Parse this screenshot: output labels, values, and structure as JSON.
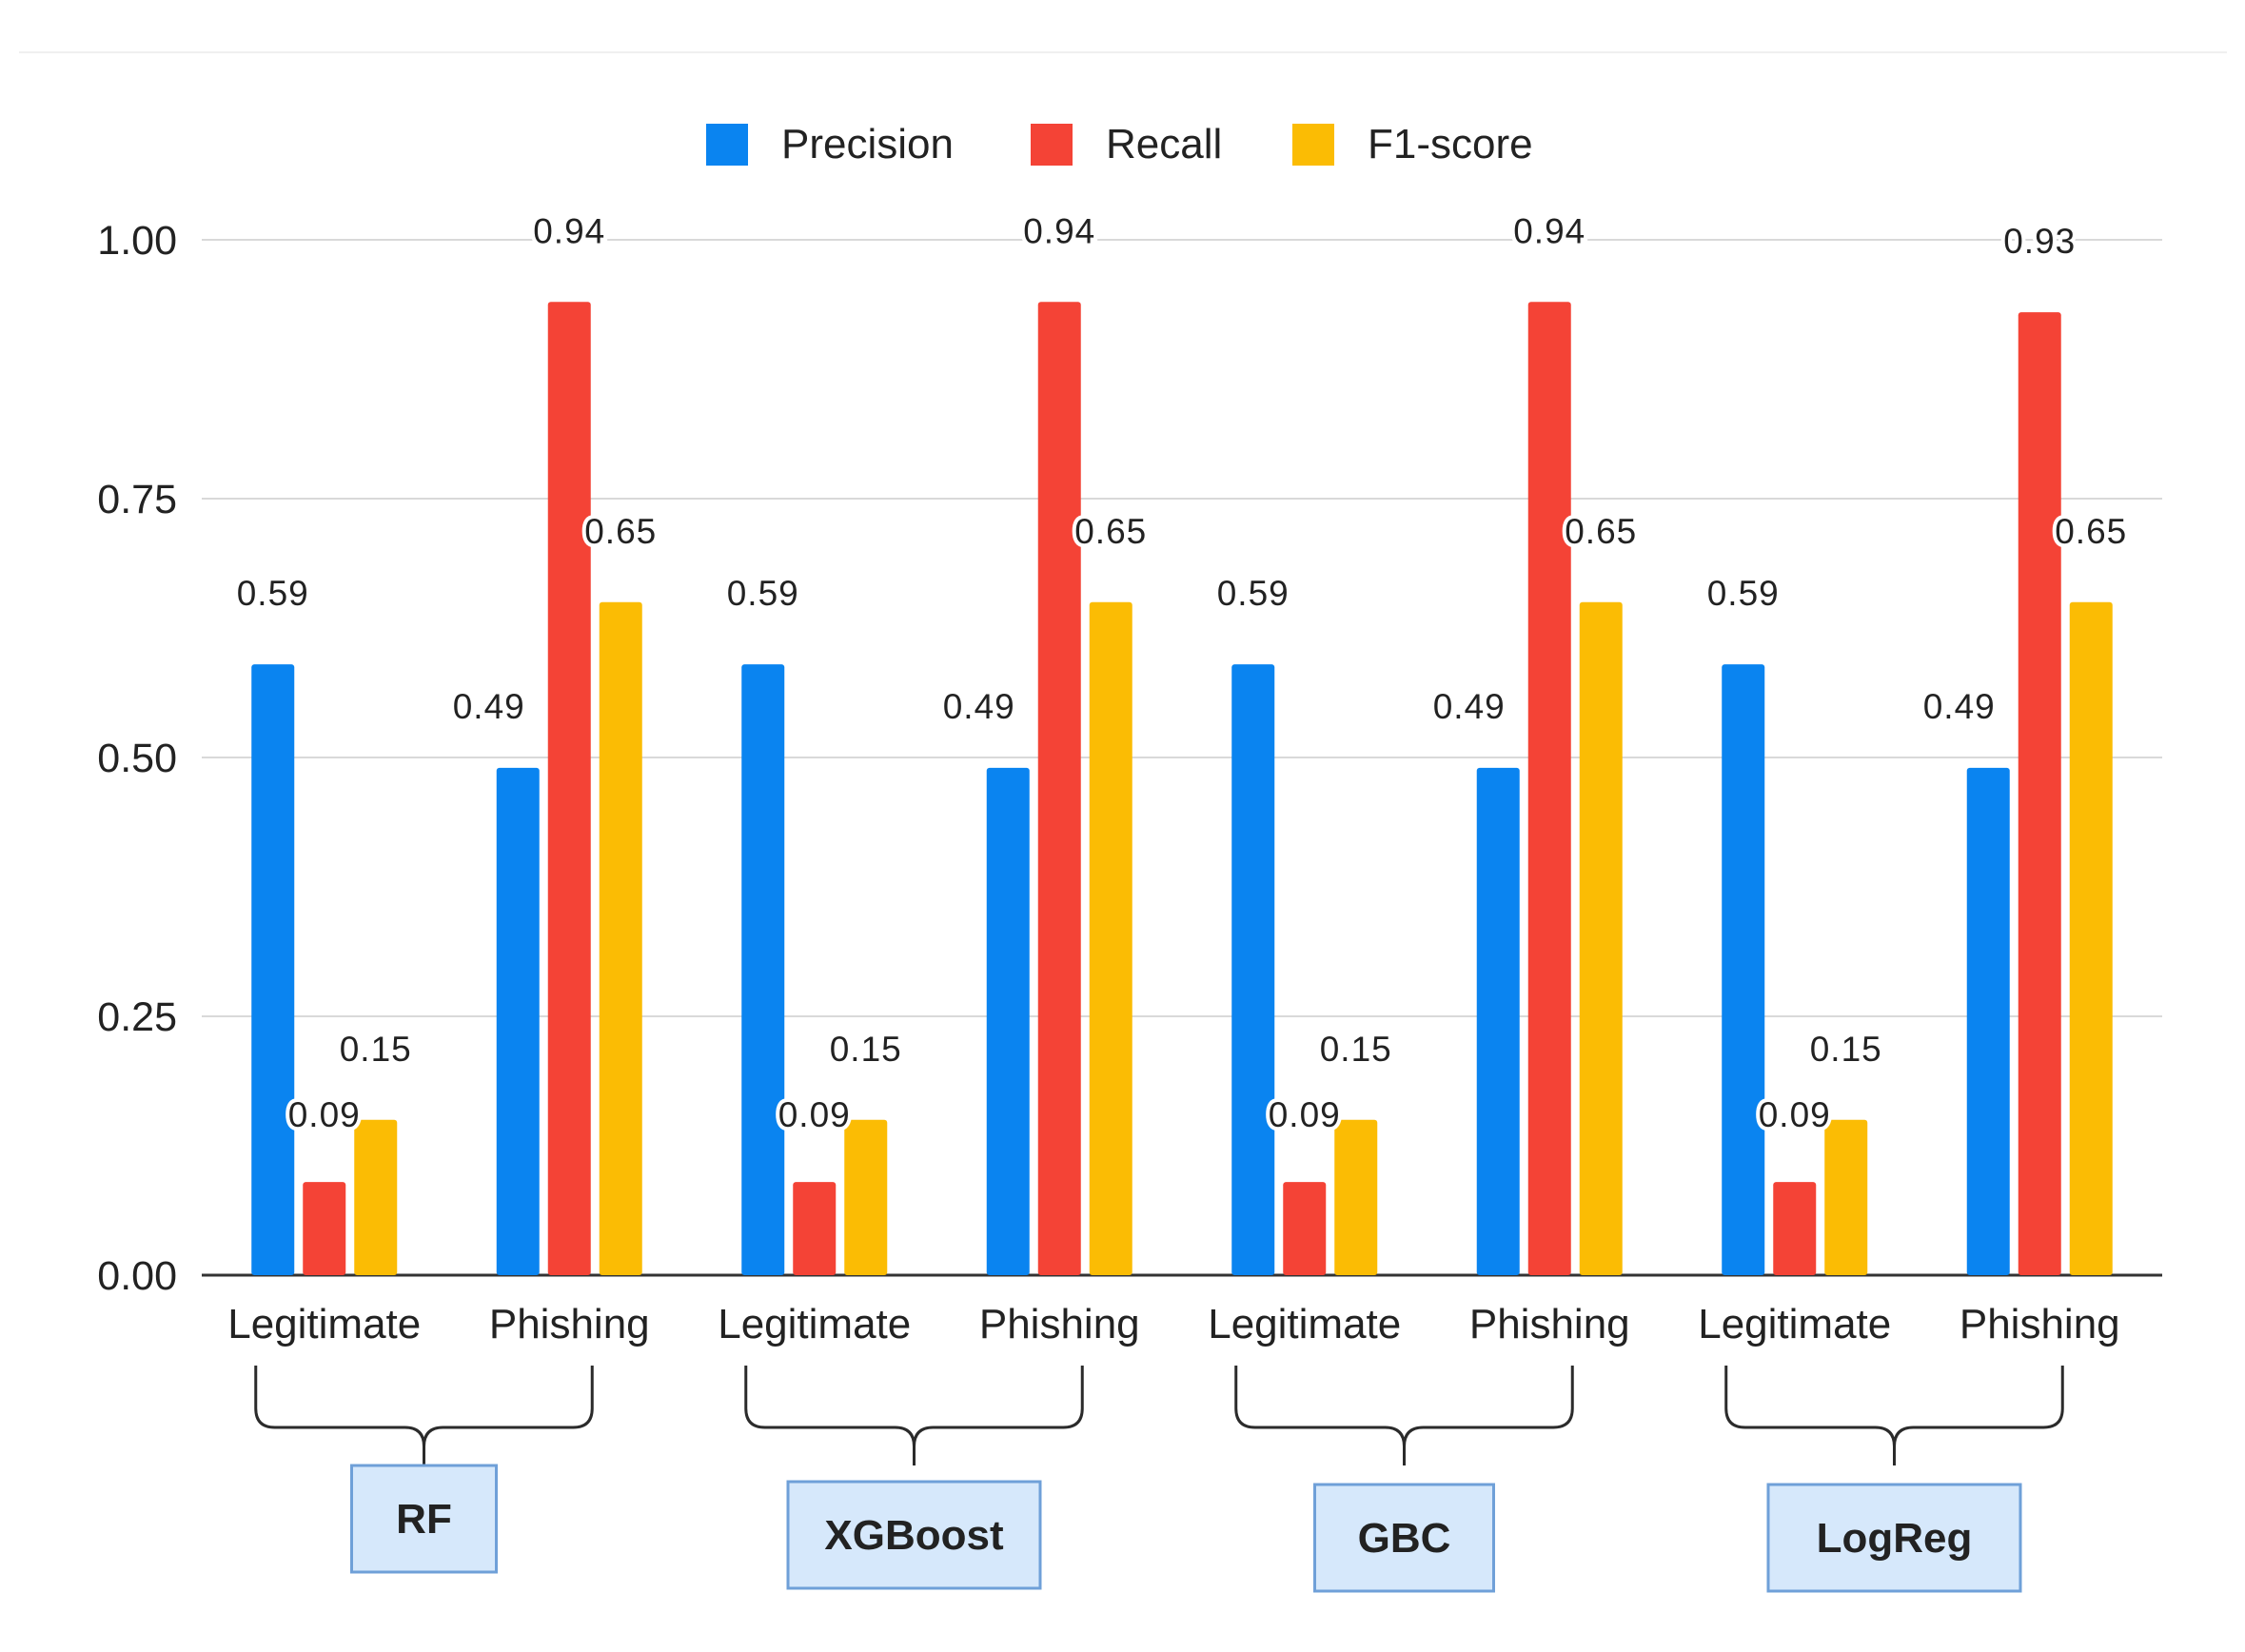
{
  "chart_data": {
    "type": "bar",
    "title": "",
    "xlabel": "",
    "ylabel": "",
    "ylim": [
      0,
      1
    ],
    "yticks": [
      "0.00",
      "0.25",
      "0.50",
      "0.75",
      "1.00"
    ],
    "grid": true,
    "legend_position": "top-center",
    "categories": [
      "Legitimate",
      "Phishing",
      "Legitimate",
      "Phishing",
      "Legitimate",
      "Phishing",
      "Legitimate",
      "Phishing"
    ],
    "groups": [
      {
        "label": "RF",
        "categories": [
          0,
          1
        ]
      },
      {
        "label": "XGBoost",
        "categories": [
          2,
          3
        ]
      },
      {
        "label": "GBC",
        "categories": [
          4,
          5
        ]
      },
      {
        "label": "LogReg",
        "categories": [
          6,
          7
        ]
      }
    ],
    "series": [
      {
        "name": "Precision",
        "color": "#0a84f0",
        "values": [
          0.59,
          0.49,
          0.59,
          0.49,
          0.59,
          0.49,
          0.59,
          0.49
        ],
        "labels": [
          "0.59",
          "0.49",
          "0.59",
          "0.49",
          "0.59",
          "0.49",
          "0.59",
          "0.49"
        ]
      },
      {
        "name": "Recall",
        "color": "#f44336",
        "values": [
          0.09,
          0.94,
          0.09,
          0.94,
          0.09,
          0.94,
          0.09,
          0.93
        ],
        "labels": [
          "0.09",
          "0.94",
          "0.09",
          "0.94",
          "0.09",
          "0.94",
          "0.09",
          "0.93"
        ]
      },
      {
        "name": "F1-score",
        "color": "#fbbc04",
        "values": [
          0.15,
          0.65,
          0.15,
          0.65,
          0.15,
          0.65,
          0.15,
          0.65
        ],
        "labels": [
          "0.15",
          "0.65",
          "0.15",
          "0.65",
          "0.15",
          "0.65",
          "0.15",
          "0.65"
        ]
      }
    ]
  }
}
